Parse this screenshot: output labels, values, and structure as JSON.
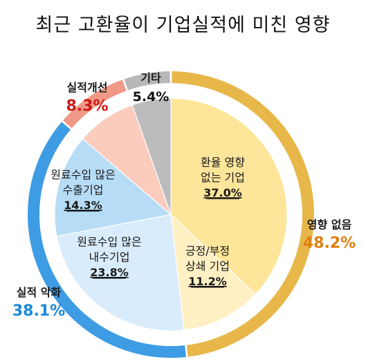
{
  "chart_data": {
    "type": "pie",
    "title": "최근 고환율이 기업실적에 미친 영향",
    "inner": [
      {
        "label_lines": [
          "환율 영향",
          "없는 기업"
        ],
        "value": 37.0,
        "value_label": "37.0%",
        "color": "#fde59a"
      },
      {
        "label_lines": [
          "긍정/부정",
          "상쇄 기업"
        ],
        "value": 11.2,
        "value_label": "11.2%",
        "color": "#fff0c4"
      },
      {
        "label_lines": [
          "원료수입 많은",
          "내수기업"
        ],
        "value": 23.8,
        "value_label": "23.8%",
        "color": "#d9ecfb"
      },
      {
        "label_lines": [
          "원료수입 많은",
          "수출기업"
        ],
        "value": 14.3,
        "value_label": "14.3%",
        "color": "#b7ddf6"
      },
      {
        "label_lines": [],
        "value": 8.3,
        "value_label": "",
        "color": "#fbcbbd"
      },
      {
        "label_lines": [],
        "value": 5.4,
        "value_label": "",
        "color": "#bcbcbc"
      }
    ],
    "outer": [
      {
        "label": "영향 없음",
        "value": 48.2,
        "value_label": "48.2%",
        "color": "#e8b74a",
        "value_color": "#e07f10"
      },
      {
        "label": "실적 악화",
        "value": 38.1,
        "value_label": "38.1%",
        "color": "#3e9ce4",
        "value_color": "#1a88d8"
      },
      {
        "label": "실적개선",
        "value": 8.3,
        "value_label": "8.3%",
        "color": "#ef9986",
        "value_color": "#d01818"
      },
      {
        "label": "기타",
        "value": 5.4,
        "value_label": "5.4%",
        "color": "#b8b8b8",
        "value_color": "#111111"
      }
    ]
  }
}
